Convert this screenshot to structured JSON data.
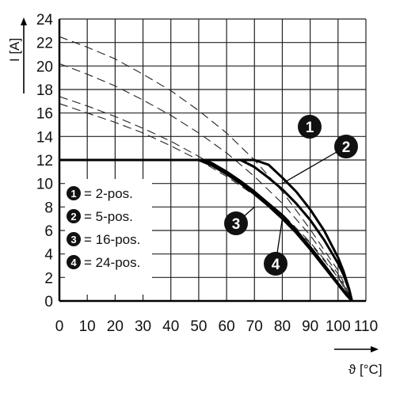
{
  "chart_data": {
    "type": "line",
    "xlabel": "ϑ [°C]",
    "ylabel": "I [A]",
    "xlim": [
      0,
      110
    ],
    "ylim": [
      0,
      24
    ],
    "xticks": [
      "0",
      "10",
      "20",
      "30",
      "40",
      "50",
      "60",
      "70",
      "80",
      "90",
      "100",
      "110"
    ],
    "yticks": [
      "0",
      "2",
      "4",
      "6",
      "8",
      "10",
      "12",
      "14",
      "16",
      "18",
      "20",
      "22",
      "24"
    ],
    "grid": true,
    "legend_position": "left-center",
    "legend": [
      {
        "badge": "1",
        "label": "= 2-pos."
      },
      {
        "badge": "2",
        "label": "= 5-pos."
      },
      {
        "badge": "3",
        "label": "= 16-pos."
      },
      {
        "badge": "4",
        "label": "= 24-pos."
      }
    ],
    "series": [
      {
        "badge": "1",
        "derating_x": [
          0,
          10,
          20,
          30,
          40,
          50,
          60,
          70,
          80,
          90,
          100,
          105
        ],
        "derating_y": [
          22.5,
          21.6,
          20.6,
          19.3,
          17.9,
          16.2,
          14.3,
          12.0,
          9.3,
          6.1,
          2.6,
          0
        ],
        "limit": 12,
        "solid_x": [
          0,
          70,
          75,
          80,
          85,
          90,
          95,
          100,
          102,
          104,
          105
        ],
        "solid_y": [
          12,
          12,
          11.6,
          10.5,
          9.3,
          7.8,
          6.0,
          3.7,
          2.5,
          1.0,
          0
        ],
        "badge_anchor": [
          86,
          15
        ]
      },
      {
        "badge": "2",
        "derating_x": [
          0,
          10,
          20,
          30,
          40,
          50,
          60,
          70,
          80,
          90,
          100,
          105
        ],
        "derating_y": [
          20.2,
          19.3,
          18.3,
          17.1,
          15.8,
          14.3,
          12.6,
          10.6,
          8.3,
          5.6,
          2.3,
          0
        ],
        "limit": 12,
        "solid_x": [
          0,
          65,
          70,
          75,
          80,
          85,
          90,
          95,
          100,
          102,
          104,
          105
        ],
        "solid_y": [
          12,
          12,
          11.4,
          10.5,
          9.5,
          8.3,
          6.9,
          5.2,
          3.2,
          2.2,
          0.9,
          0
        ],
        "badge_anchor": [
          80,
          10
        ]
      },
      {
        "badge": "3",
        "derating_x": [
          0,
          10,
          20,
          30,
          40,
          50,
          60,
          70,
          80,
          90,
          100,
          105
        ],
        "derating_y": [
          17.4,
          16.6,
          15.7,
          14.7,
          13.6,
          12.3,
          10.9,
          9.3,
          7.4,
          5.0,
          2.1,
          0
        ],
        "limit": 12,
        "solid_x": [
          0,
          52,
          55,
          60,
          65,
          70,
          75,
          80,
          85,
          90,
          95,
          100,
          103,
          105
        ],
        "solid_y": [
          12,
          12,
          11.7,
          11.0,
          10.2,
          9.3,
          8.3,
          7.3,
          6.0,
          4.6,
          3.1,
          1.5,
          0.6,
          0
        ],
        "badge_anchor": [
          70,
          8
        ]
      },
      {
        "badge": "4",
        "derating_x": [
          0,
          10,
          20,
          30,
          40,
          50,
          60,
          70,
          80,
          90,
          100,
          105
        ],
        "derating_y": [
          16.8,
          16.0,
          15.2,
          14.3,
          13.2,
          12.0,
          10.6,
          9.0,
          7.2,
          4.9,
          2.0,
          0
        ],
        "limit": 12,
        "solid_x": [
          0,
          50,
          55,
          60,
          65,
          70,
          75,
          80,
          85,
          90,
          95,
          100,
          103,
          105
        ],
        "solid_y": [
          12,
          12,
          11.5,
          10.8,
          10.0,
          9.1,
          8.1,
          7.0,
          5.8,
          4.4,
          2.9,
          1.4,
          0.5,
          0
        ],
        "badge_anchor": [
          80,
          7
        ]
      }
    ]
  }
}
